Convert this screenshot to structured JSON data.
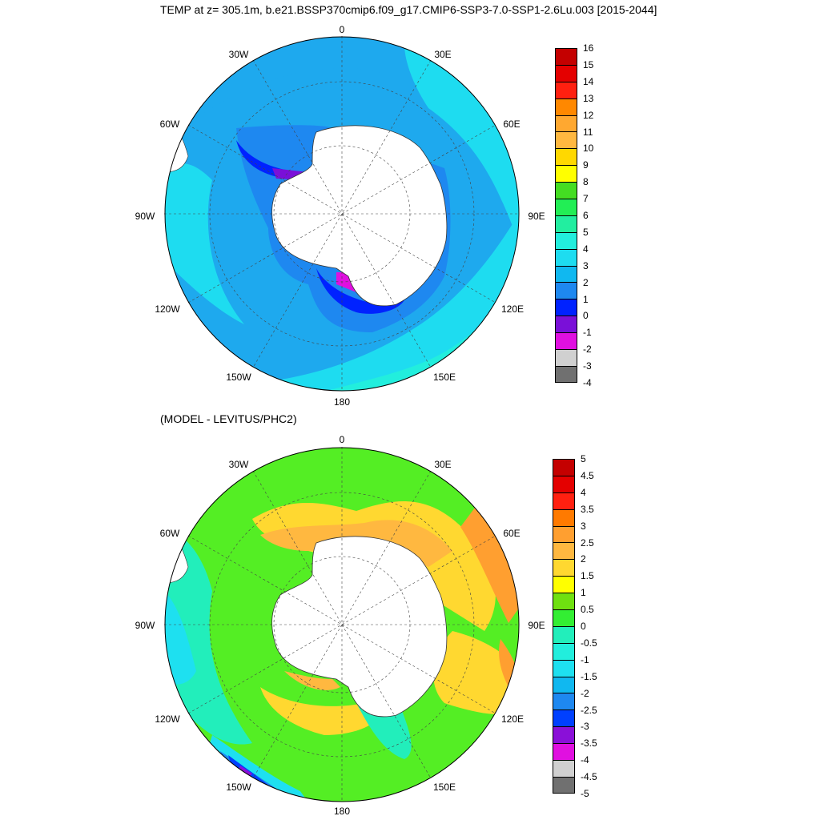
{
  "title": "TEMP at z= 305.1m, b.e21.BSSP370cmip6.f09_g17.CMIP6-SSP3-7.0-SSP1-2.6Lu.003 [2015-2044]",
  "subtitle": "(MODEL - LEVITUS/PHC2)",
  "longitude_labels": {
    "n0": "0",
    "e30": "30E",
    "e60": "60E",
    "e90": "90E",
    "e120": "120E",
    "e150": "150E",
    "s180": "180",
    "w150": "150W",
    "w120": "120W",
    "w90": "90W",
    "w60": "60W",
    "w30": "30W"
  },
  "colors": {
    "land": "#ffffff",
    "top_bg": "#1ea9ee",
    "bottom_bg": "#54ee24"
  },
  "top_colorbar": {
    "labels": [
      "16",
      "15",
      "14",
      "13",
      "12",
      "11",
      "10",
      "9",
      "8",
      "7",
      "6",
      "5",
      "4",
      "3",
      "2",
      "1",
      "0",
      "-1",
      "-2",
      "-3",
      "-4"
    ],
    "colors": [
      "#c40000",
      "#e40000",
      "#ff2010",
      "#ff8800",
      "#ffa830",
      "#ffb840",
      "#ffd800",
      "#ffff00",
      "#44dd22",
      "#22ee55",
      "#22eea0",
      "#22eedd",
      "#1edcf0",
      "#10b8f0",
      "#1e88f0",
      "#0022ff",
      "#7a10d8",
      "#e010e0",
      "#d0d0d0",
      "#707070"
    ]
  },
  "bottom_colorbar": {
    "labels": [
      "5",
      "4.5",
      "4",
      "3.5",
      "3",
      "2.5",
      "2",
      "1.5",
      "1",
      "0.5",
      "0",
      "-0.5",
      "-1",
      "-1.5",
      "-2",
      "-2.5",
      "-3",
      "-3.5",
      "-4",
      "-4.5",
      "-5"
    ],
    "colors": [
      "#c40000",
      "#e40000",
      "#ff2010",
      "#ff7a00",
      "#ff9f30",
      "#ffb840",
      "#ffd830",
      "#ffff00",
      "#6fe010",
      "#33ee33",
      "#22eebb",
      "#22eedd",
      "#1ee0f0",
      "#10b8f0",
      "#1e88f0",
      "#0040ff",
      "#8a10d8",
      "#e010e0",
      "#d0d0d0",
      "#707070"
    ]
  }
}
